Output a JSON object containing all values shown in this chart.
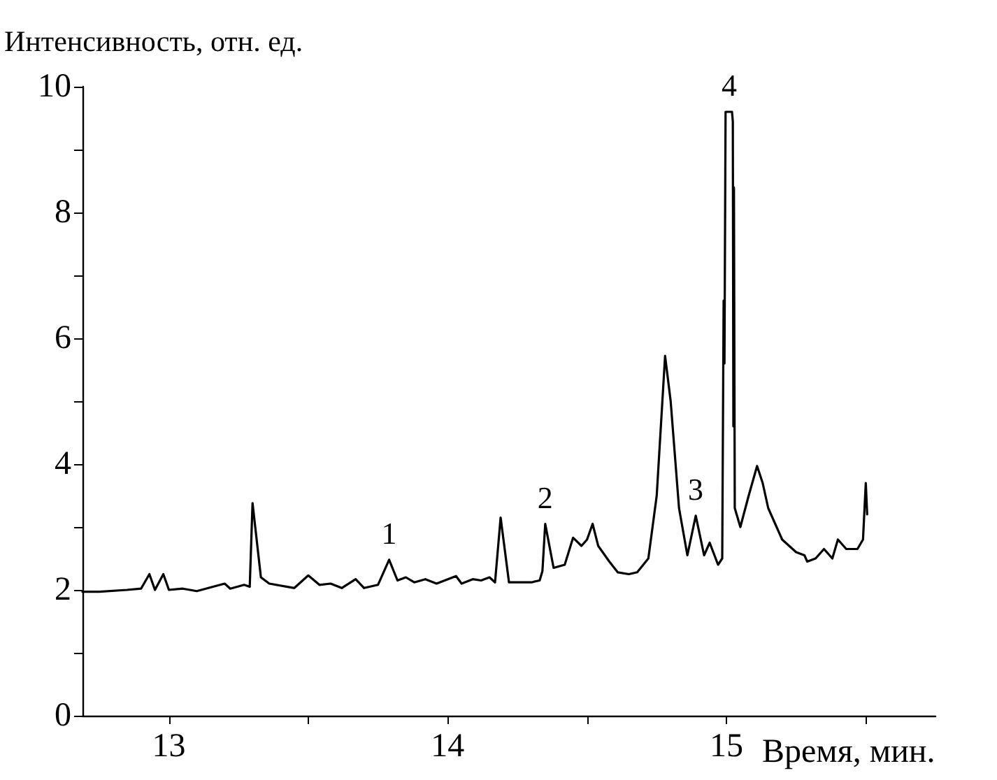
{
  "chart_data": {
    "type": "line",
    "xlabel": "Время, мин.",
    "ylabel": "Интенсивность, отн. ед.",
    "x": [
      12.69,
      12.75,
      12.85,
      12.9,
      12.93,
      12.95,
      12.98,
      13.0,
      13.05,
      13.1,
      13.2,
      13.22,
      13.27,
      13.29,
      13.3,
      13.33,
      13.36,
      13.45,
      13.5,
      13.54,
      13.58,
      13.62,
      13.67,
      13.7,
      13.75,
      13.79,
      13.82,
      13.85,
      13.88,
      13.92,
      13.96,
      14.03,
      14.05,
      14.09,
      14.12,
      14.15,
      14.17,
      14.19,
      14.22,
      14.3,
      14.33,
      14.34,
      14.35,
      14.38,
      14.42,
      14.45,
      14.48,
      14.5,
      14.52,
      14.54,
      14.58,
      14.61,
      14.65,
      14.68,
      14.72,
      14.75,
      14.78,
      14.8,
      14.83,
      14.86,
      14.89,
      14.92,
      14.94,
      14.97,
      14.985,
      14.99,
      14.993,
      14.997,
      15.02,
      15.023,
      15.025,
      15.027,
      15.03,
      15.05,
      15.08,
      15.11,
      15.13,
      15.15,
      15.2,
      15.25,
      15.28,
      15.29,
      15.32,
      15.35,
      15.38,
      15.4,
      15.43,
      15.47,
      15.49,
      15.5,
      15.505
    ],
    "series": [
      {
        "color": "#000000",
        "values": [
          1.97,
          1.97,
          2.0,
          2.02,
          2.25,
          2.0,
          2.25,
          2.0,
          2.02,
          1.98,
          2.1,
          2.02,
          2.08,
          2.05,
          3.38,
          2.2,
          2.1,
          2.03,
          2.23,
          2.08,
          2.1,
          2.03,
          2.17,
          2.03,
          2.08,
          2.48,
          2.15,
          2.2,
          2.12,
          2.17,
          2.1,
          2.22,
          2.1,
          2.17,
          2.15,
          2.2,
          2.12,
          3.15,
          2.12,
          2.12,
          2.15,
          2.3,
          3.05,
          2.35,
          2.4,
          2.83,
          2.7,
          2.8,
          3.05,
          2.7,
          2.45,
          2.28,
          2.25,
          2.28,
          2.5,
          3.5,
          5.72,
          5.0,
          3.3,
          2.55,
          3.18,
          2.55,
          2.75,
          2.4,
          2.5,
          6.6,
          5.6,
          9.6,
          9.6,
          9.45,
          4.6,
          8.4,
          3.3,
          3.0,
          3.5,
          3.97,
          3.7,
          3.3,
          2.8,
          2.6,
          2.55,
          2.45,
          2.5,
          2.65,
          2.5,
          2.8,
          2.65,
          2.65,
          2.8,
          3.7,
          3.2
        ]
      }
    ],
    "xlim": [
      12.69,
      15.75
    ],
    "xticks": [
      13,
      {
        "value": 13.5,
        "label": null
      },
      14,
      {
        "value": 14.5,
        "label": null
      },
      15,
      {
        "value": 15.5,
        "label": null
      }
    ],
    "ylim": [
      0,
      10
    ],
    "yticks": [
      0,
      {
        "value": 1,
        "label": null
      },
      2,
      {
        "value": 3,
        "label": null
      },
      4,
      {
        "value": 5,
        "label": null
      },
      6,
      {
        "value": 7,
        "label": null
      },
      8,
      {
        "value": 9,
        "label": null
      },
      10
    ],
    "annotations": [
      {
        "text": "1",
        "x": 13.79,
        "y": 2.48
      },
      {
        "text": "2",
        "x": 14.35,
        "y": 3.05
      },
      {
        "text": "3",
        "x": 14.89,
        "y": 3.18
      },
      {
        "text": "4",
        "x": 15.01,
        "y": 9.6
      }
    ],
    "grid": false,
    "marker": "none",
    "line_style": "solid"
  }
}
